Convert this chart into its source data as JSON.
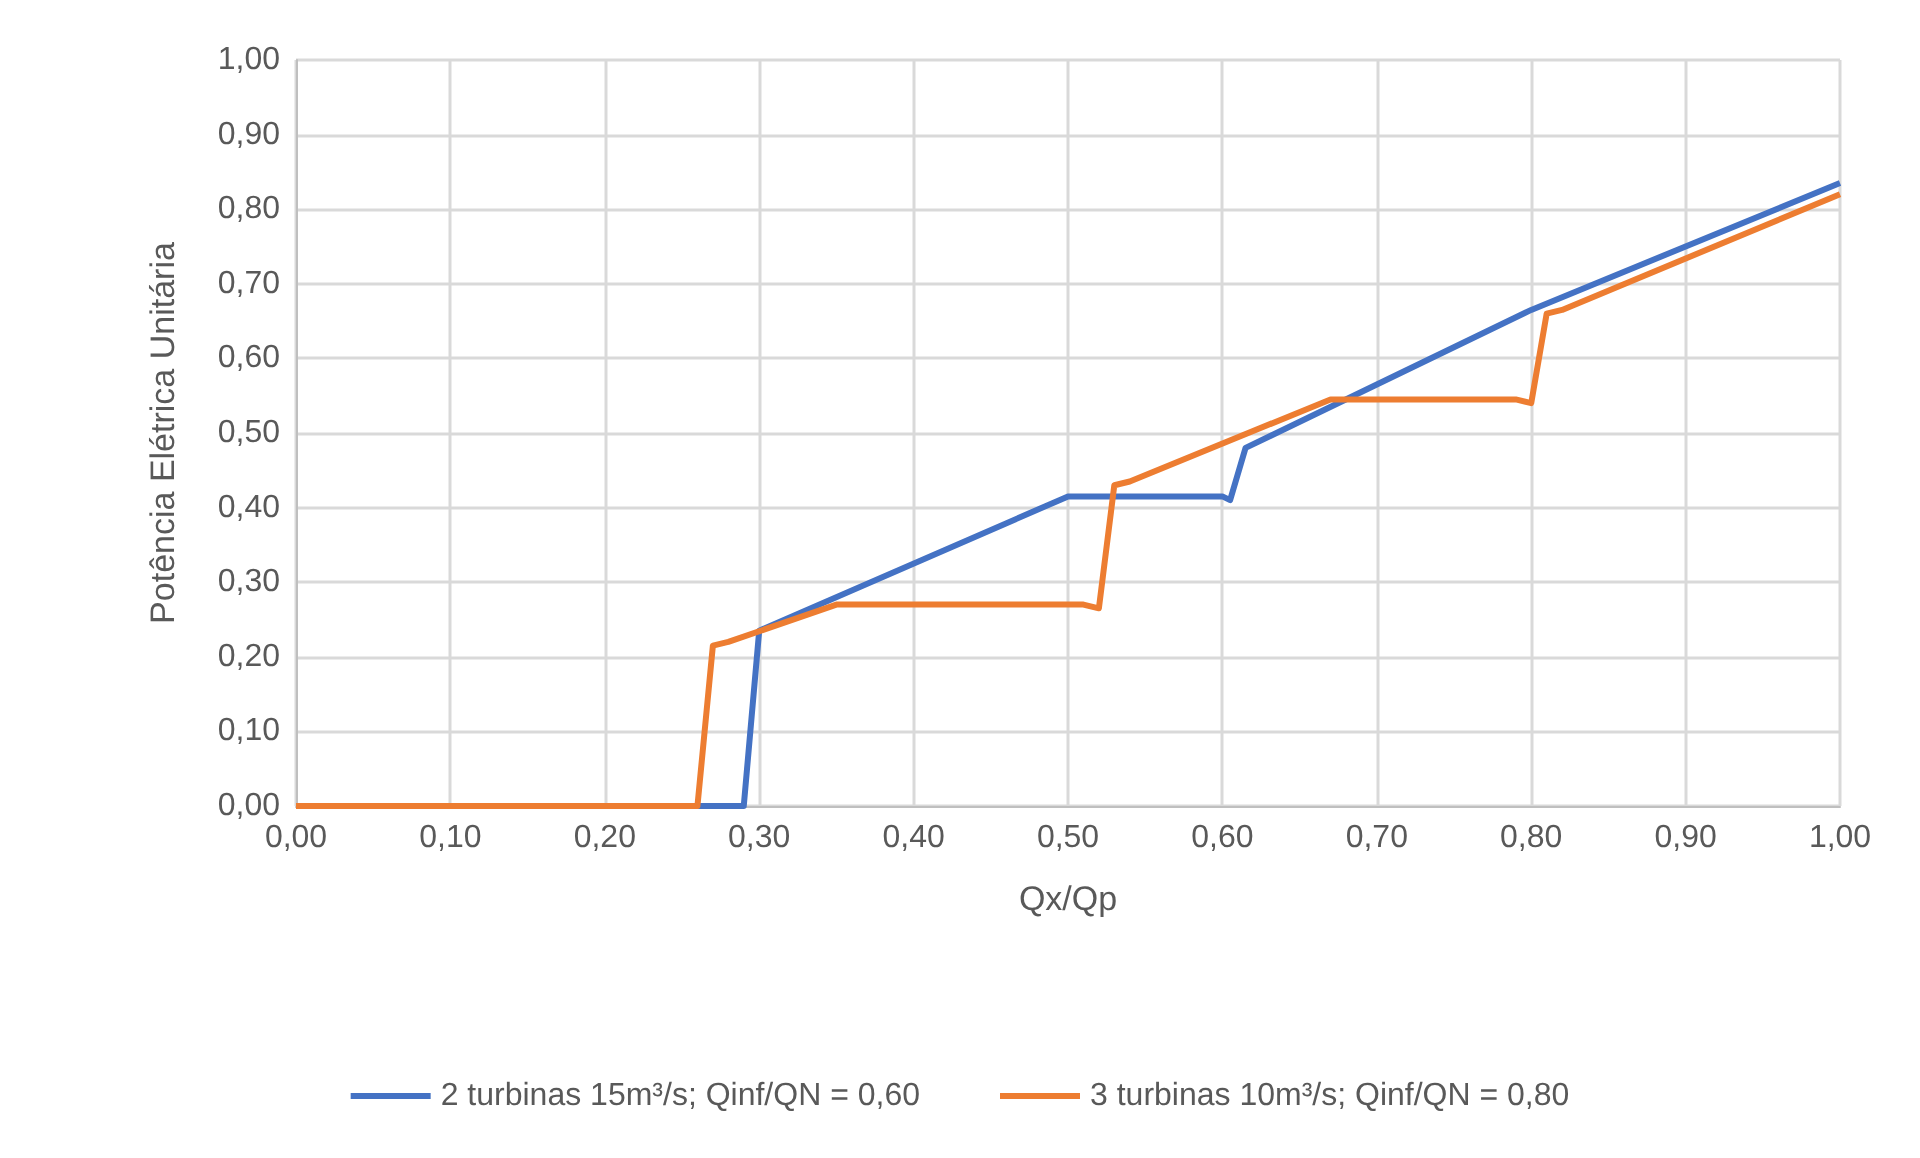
{
  "chart_data": {
    "type": "line",
    "xlabel": "Qx/Qp",
    "ylabel": "Potência Elétrica Unitária",
    "series": [
      {
        "name": "2 turbinas 15m³/s; Qinf/QN = 0,60",
        "color": "#4472c4",
        "x": [
          0,
          0.29,
          0.3,
          0.5,
          0.6,
          0.605,
          0.615,
          0.8,
          1.0
        ],
        "values": [
          0,
          0,
          0.235,
          0.415,
          0.415,
          0.41,
          0.48,
          0.665,
          0.835
        ]
      },
      {
        "name": "3 turbinas 10m³/s; Qinf/QN = 0,80",
        "color": "#ed7d31",
        "x": [
          0,
          0.26,
          0.27,
          0.28,
          0.35,
          0.51,
          0.52,
          0.53,
          0.54,
          0.67,
          0.79,
          0.8,
          0.81,
          0.82,
          1.0
        ],
        "values": [
          0,
          0,
          0.215,
          0.22,
          0.27,
          0.27,
          0.265,
          0.43,
          0.435,
          0.545,
          0.545,
          0.54,
          0.66,
          0.665,
          0.82
        ]
      }
    ],
    "xlim": [
      0,
      1
    ],
    "ylim": [
      0,
      1
    ],
    "xticks": [
      {
        "value": 0,
        "label": "0,00"
      },
      {
        "value": 0.1,
        "label": "0,10"
      },
      {
        "value": 0.2,
        "label": "0,20"
      },
      {
        "value": 0.3,
        "label": "0,30"
      },
      {
        "value": 0.4,
        "label": "0,40"
      },
      {
        "value": 0.5,
        "label": "0,50"
      },
      {
        "value": 0.6,
        "label": "0,60"
      },
      {
        "value": 0.7,
        "label": "0,70"
      },
      {
        "value": 0.8,
        "label": "0,80"
      },
      {
        "value": 0.9,
        "label": "0,90"
      },
      {
        "value": 1,
        "label": "1,00"
      }
    ],
    "yticks": [
      {
        "value": 0,
        "label": "0,00"
      },
      {
        "value": 0.1,
        "label": "0,10"
      },
      {
        "value": 0.2,
        "label": "0,20"
      },
      {
        "value": 0.3,
        "label": "0,30"
      },
      {
        "value": 0.4,
        "label": "0,40"
      },
      {
        "value": 0.5,
        "label": "0,50"
      },
      {
        "value": 0.6,
        "label": "0,60"
      },
      {
        "value": 0.7,
        "label": "0,70"
      },
      {
        "value": 0.8,
        "label": "0,80"
      },
      {
        "value": 0.9,
        "label": "0,90"
      },
      {
        "value": 1,
        "label": "1,00"
      }
    ],
    "grid": true,
    "legend": "bottom",
    "marker": "none",
    "line_style": "solid"
  }
}
